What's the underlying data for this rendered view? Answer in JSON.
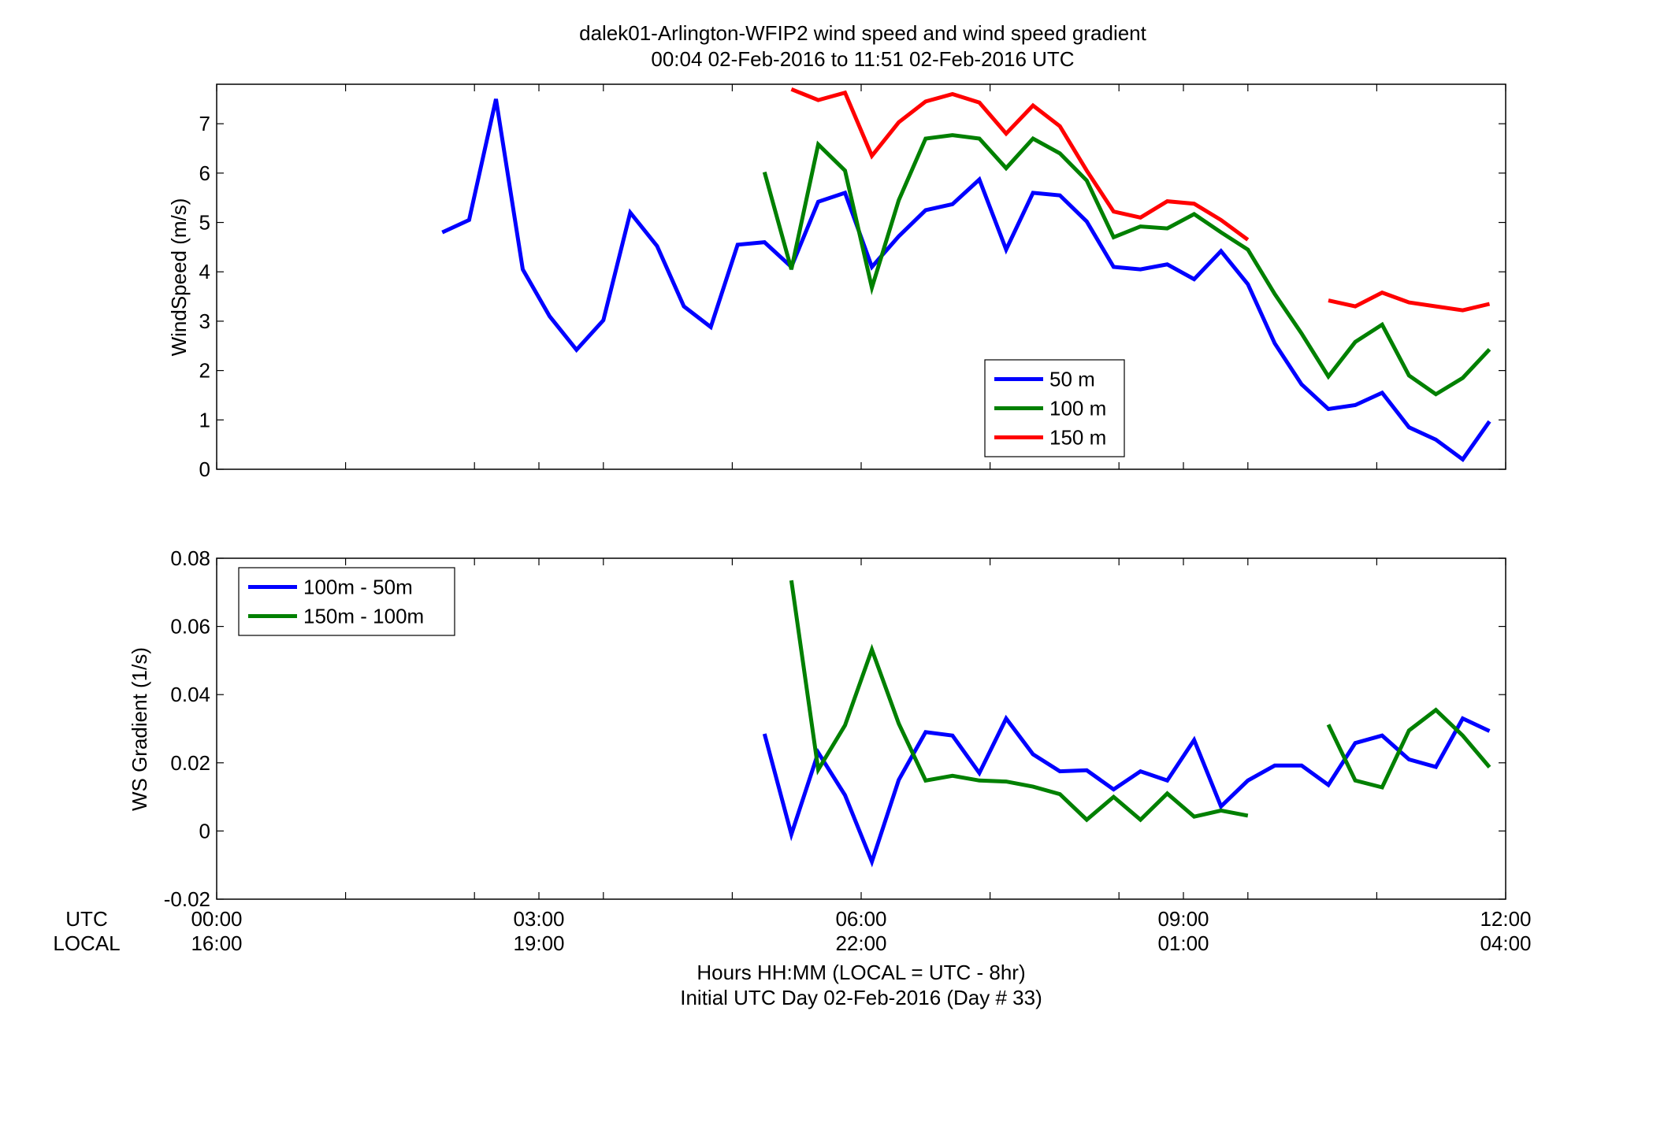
{
  "title": {
    "line1": "dalek01-Arlington-WFIP2  wind speed and wind speed gradient",
    "line2": "00:04 02-Feb-2016 to 11:51 02-Feb-2016  UTC"
  },
  "x_axis": {
    "row_labels": [
      "UTC",
      "LOCAL"
    ],
    "range_hours": [
      0,
      12
    ],
    "ticks": [
      {
        "hour": 0,
        "utc": "00:00",
        "local": "16:00"
      },
      {
        "hour": 3,
        "utc": "03:00",
        "local": "19:00"
      },
      {
        "hour": 6,
        "utc": "06:00",
        "local": "22:00"
      },
      {
        "hour": 9,
        "utc": "09:00",
        "local": "01:00"
      },
      {
        "hour": 12,
        "utc": "12:00",
        "local": "04:00"
      }
    ],
    "minor_ticks_hours": [
      1.2,
      2.4,
      3.6,
      4.8,
      7.2,
      8.4,
      9.6,
      10.8
    ],
    "xlabel_line1": "Hours HH:MM  (LOCAL = UTC - 8hr)",
    "xlabel_line2": "Initial UTC Day 02-Feb-2016 (Day # 33)"
  },
  "colors": {
    "blue": "#0000ff",
    "green": "#008000",
    "red": "#ff0000"
  },
  "chart_data": [
    {
      "type": "line",
      "ylabel": "WindSpeed (m/s)",
      "ylim": [
        0,
        7.8
      ],
      "yticks": [
        0,
        1,
        2,
        3,
        4,
        5,
        6,
        7
      ],
      "ytick_labels": [
        "0",
        "1",
        "2",
        "3",
        "4",
        "5",
        "6",
        "7"
      ],
      "legend_position": "lower-right",
      "series": [
        {
          "name": "50 m",
          "color": "#0000ff",
          "x": [
            2.1,
            2.35,
            2.6,
            2.85,
            3.1,
            3.35,
            3.6,
            3.85,
            4.1,
            4.35,
            4.6,
            4.85,
            5.1,
            5.35,
            5.6,
            5.85,
            6.1,
            6.35,
            6.6,
            6.85,
            7.1,
            7.35,
            7.6,
            7.85,
            8.1,
            8.35,
            8.6,
            8.85,
            9.1,
            9.35,
            9.6,
            9.85,
            10.1,
            10.35,
            10.6,
            10.85,
            11.1,
            11.35,
            11.6,
            11.85
          ],
          "values": [
            4.8,
            5.05,
            7.5,
            4.05,
            3.1,
            2.42,
            3.02,
            5.2,
            4.52,
            3.3,
            2.88,
            4.55,
            4.6,
            4.1,
            5.42,
            5.6,
            4.1,
            4.72,
            5.25,
            5.37,
            5.87,
            4.45,
            5.6,
            5.55,
            5.02,
            4.1,
            4.05,
            4.15,
            3.85,
            4.42,
            3.75,
            2.55,
            1.72,
            1.22,
            1.3,
            1.55,
            0.85,
            0.6,
            0.2,
            0.97
          ]
        },
        {
          "name": "100 m",
          "color": "#008000",
          "x": [
            5.1,
            5.35,
            5.6,
            5.85,
            6.1,
            6.35,
            6.6,
            6.85,
            7.1,
            7.35,
            7.6,
            7.85,
            8.1,
            8.35,
            8.6,
            8.85,
            9.1,
            9.35,
            9.6,
            9.85,
            10.1,
            10.35,
            10.6,
            10.85,
            11.1,
            11.35,
            11.6,
            11.85
          ],
          "values": [
            6.02,
            4.05,
            6.58,
            6.05,
            3.68,
            5.45,
            6.7,
            6.77,
            6.7,
            6.1,
            6.7,
            6.4,
            5.85,
            4.7,
            4.92,
            4.88,
            5.17,
            4.8,
            4.45,
            3.55,
            2.75,
            1.88,
            2.58,
            2.93,
            1.9,
            1.52,
            1.85,
            2.43
          ]
        },
        {
          "name": "150 m",
          "color": "#ff0000",
          "x": [
            5.35,
            5.6,
            5.85,
            6.1,
            6.35,
            6.6,
            6.85,
            7.1,
            7.35,
            7.6,
            7.85,
            8.1,
            8.35,
            8.6,
            8.85,
            9.1,
            9.35,
            9.6,
            10.35,
            10.6,
            10.85,
            11.1,
            11.35,
            11.6,
            11.85
          ],
          "values": [
            7.7,
            7.48,
            7.63,
            6.35,
            7.03,
            7.45,
            7.6,
            7.43,
            6.8,
            7.37,
            6.95,
            6.05,
            5.22,
            5.1,
            5.43,
            5.38,
            5.05,
            4.65,
            3.42,
            3.3,
            3.58,
            3.38,
            3.3,
            3.22,
            3.35
          ],
          "breaks_after_index": [
            17
          ]
        }
      ]
    },
    {
      "type": "line",
      "ylabel": "WS Gradient (1/s)",
      "ylim": [
        -0.02,
        0.08
      ],
      "yticks": [
        -0.02,
        0,
        0.02,
        0.04,
        0.06,
        0.08
      ],
      "ytick_labels": [
        "-0.02",
        "0",
        "0.02",
        "0.04",
        "0.06",
        "0.08"
      ],
      "legend_position": "top-left",
      "series": [
        {
          "name": "100m - 50m",
          "color": "#0000ff",
          "x": [
            5.1,
            5.35,
            5.6,
            5.85,
            6.1,
            6.35,
            6.6,
            6.85,
            7.1,
            7.35,
            7.6,
            7.85,
            8.1,
            8.35,
            8.6,
            8.85,
            9.1,
            9.35,
            9.6,
            9.85,
            10.1,
            10.35,
            10.6,
            10.85,
            11.1,
            11.35,
            11.6,
            11.85
          ],
          "values": [
            0.0285,
            -0.001,
            0.023,
            0.0105,
            -0.009,
            0.015,
            0.029,
            0.028,
            0.017,
            0.033,
            0.0225,
            0.0175,
            0.0178,
            0.0122,
            0.0175,
            0.0148,
            0.0267,
            0.0072,
            0.0148,
            0.0192,
            0.0192,
            0.0135,
            0.0258,
            0.028,
            0.021,
            0.0188,
            0.033,
            0.0293
          ]
        },
        {
          "name": "150m - 100m",
          "color": "#008000",
          "x": [
            5.35,
            5.6,
            5.85,
            6.1,
            6.35,
            6.6,
            6.85,
            7.1,
            7.35,
            7.6,
            7.85,
            8.1,
            8.35,
            8.6,
            8.85,
            9.1,
            9.35,
            9.6,
            10.35,
            10.6,
            10.85,
            11.1,
            11.35,
            11.6,
            11.85
          ],
          "values": [
            0.0735,
            0.018,
            0.031,
            0.0532,
            0.0315,
            0.0148,
            0.0162,
            0.0148,
            0.0145,
            0.013,
            0.0108,
            0.0033,
            0.01,
            0.0033,
            0.011,
            0.0042,
            0.006,
            0.0045,
            0.0312,
            0.0148,
            0.0128,
            0.0295,
            0.0355,
            0.028,
            0.0187
          ],
          "breaks_after_index": [
            17
          ]
        }
      ]
    }
  ]
}
